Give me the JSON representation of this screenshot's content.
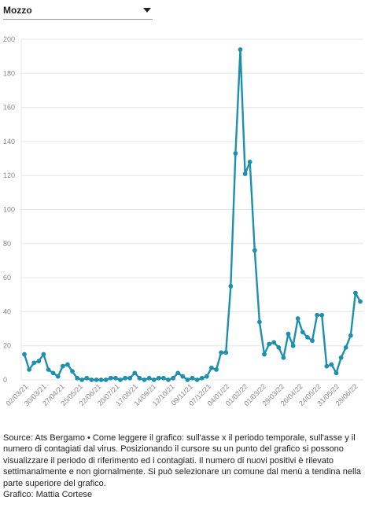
{
  "selector": {
    "value": "Mozzo"
  },
  "colors": {
    "line": "#1f8fb0",
    "grid": "#e6e6e6",
    "tick_text": "#888888"
  },
  "icons": {
    "dropdown": "chevron-down-icon"
  },
  "chart_data": {
    "type": "line",
    "title": "",
    "xlabel": "",
    "ylabel": "",
    "ylim": [
      0,
      200
    ],
    "yticks": [
      0,
      20,
      40,
      60,
      80,
      100,
      120,
      140,
      160,
      180,
      200
    ],
    "grid": true,
    "xtick_labels": [
      "02/03/21",
      "30/03/21",
      "27/04/21",
      "25/05/21",
      "22/06/21",
      "20/07/21",
      "17/08/21",
      "14/09/21",
      "12/10/21",
      "09/11/21",
      "07/12/21",
      "04/01/22",
      "01/02/22",
      "01/03/22",
      "29/03/22",
      "26/04/22",
      "24/05/22",
      "31/05/22",
      "28/06/22"
    ],
    "values": [
      15,
      6,
      10,
      11,
      15,
      6,
      4,
      2,
      8,
      9,
      5,
      1,
      0,
      1,
      0,
      0,
      0,
      0,
      1,
      1,
      0,
      1,
      1,
      4,
      1,
      0,
      1,
      0,
      1,
      1,
      0,
      1,
      4,
      2,
      0,
      1,
      0,
      1,
      2,
      7,
      6,
      16,
      16,
      55,
      133,
      194,
      121,
      128,
      76,
      34,
      15,
      21,
      22,
      19,
      13,
      27,
      20,
      36,
      28,
      25,
      23,
      38,
      38,
      8,
      9,
      4,
      13,
      19,
      26,
      51,
      46
    ]
  },
  "caption": {
    "text": "Source: Ats Bergamo • Come leggere il grafico: sull'asse x il periodo temporale, sull'asse y il numero di contagiati dal virus. Posizionando il cursore su un punto del grafico si possono visualizzare il periodo di riferimento ed i contagiati. Il numero di nuovi positivi è rilevato settimanalmente e non giornalmente. Si può selezionare un comune dal menù a tendina nella parte superiore del grafico.",
    "credit": "Grafico: Mattia Cortese"
  }
}
